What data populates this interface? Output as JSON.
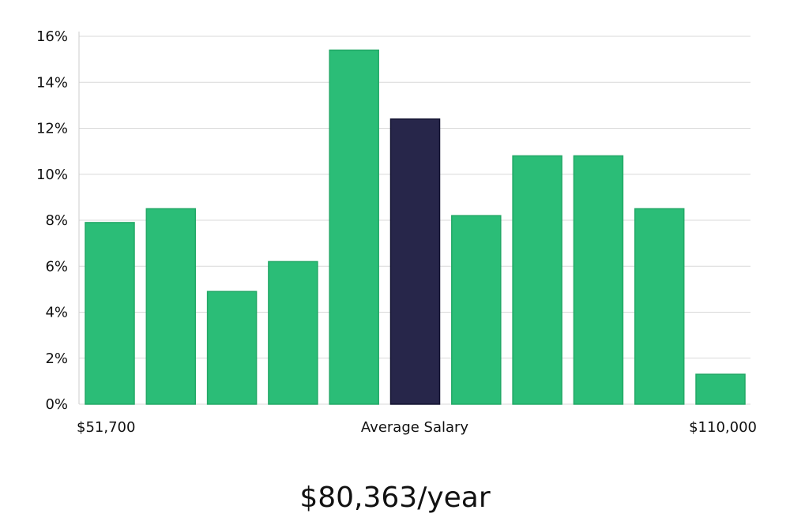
{
  "chart_data": {
    "type": "bar",
    "title": "",
    "xlabel": "Average Salary",
    "ylabel": "",
    "ylim": [
      0,
      16
    ],
    "yticks": [
      0,
      2,
      4,
      6,
      8,
      10,
      12,
      14,
      16
    ],
    "ytick_labels": [
      "0%",
      "2%",
      "4%",
      "6%",
      "8%",
      "10%",
      "12%",
      "14%",
      "16%"
    ],
    "x_start_label": "$51,700",
    "x_end_label": "$110,000",
    "values": [
      7.9,
      8.5,
      4.9,
      6.2,
      15.4,
      12.4,
      8.2,
      10.8,
      10.8,
      8.5,
      1.3
    ],
    "highlight_index": 5,
    "grid": true
  },
  "colors": {
    "bar": "#2bbd77",
    "bar_edge": "#22a866",
    "highlight": "#27264a",
    "highlight_edge": "#121230",
    "grid": "#d9d9d9",
    "axis": "#cccccc"
  },
  "summary": {
    "salary": "$80,363/year"
  }
}
